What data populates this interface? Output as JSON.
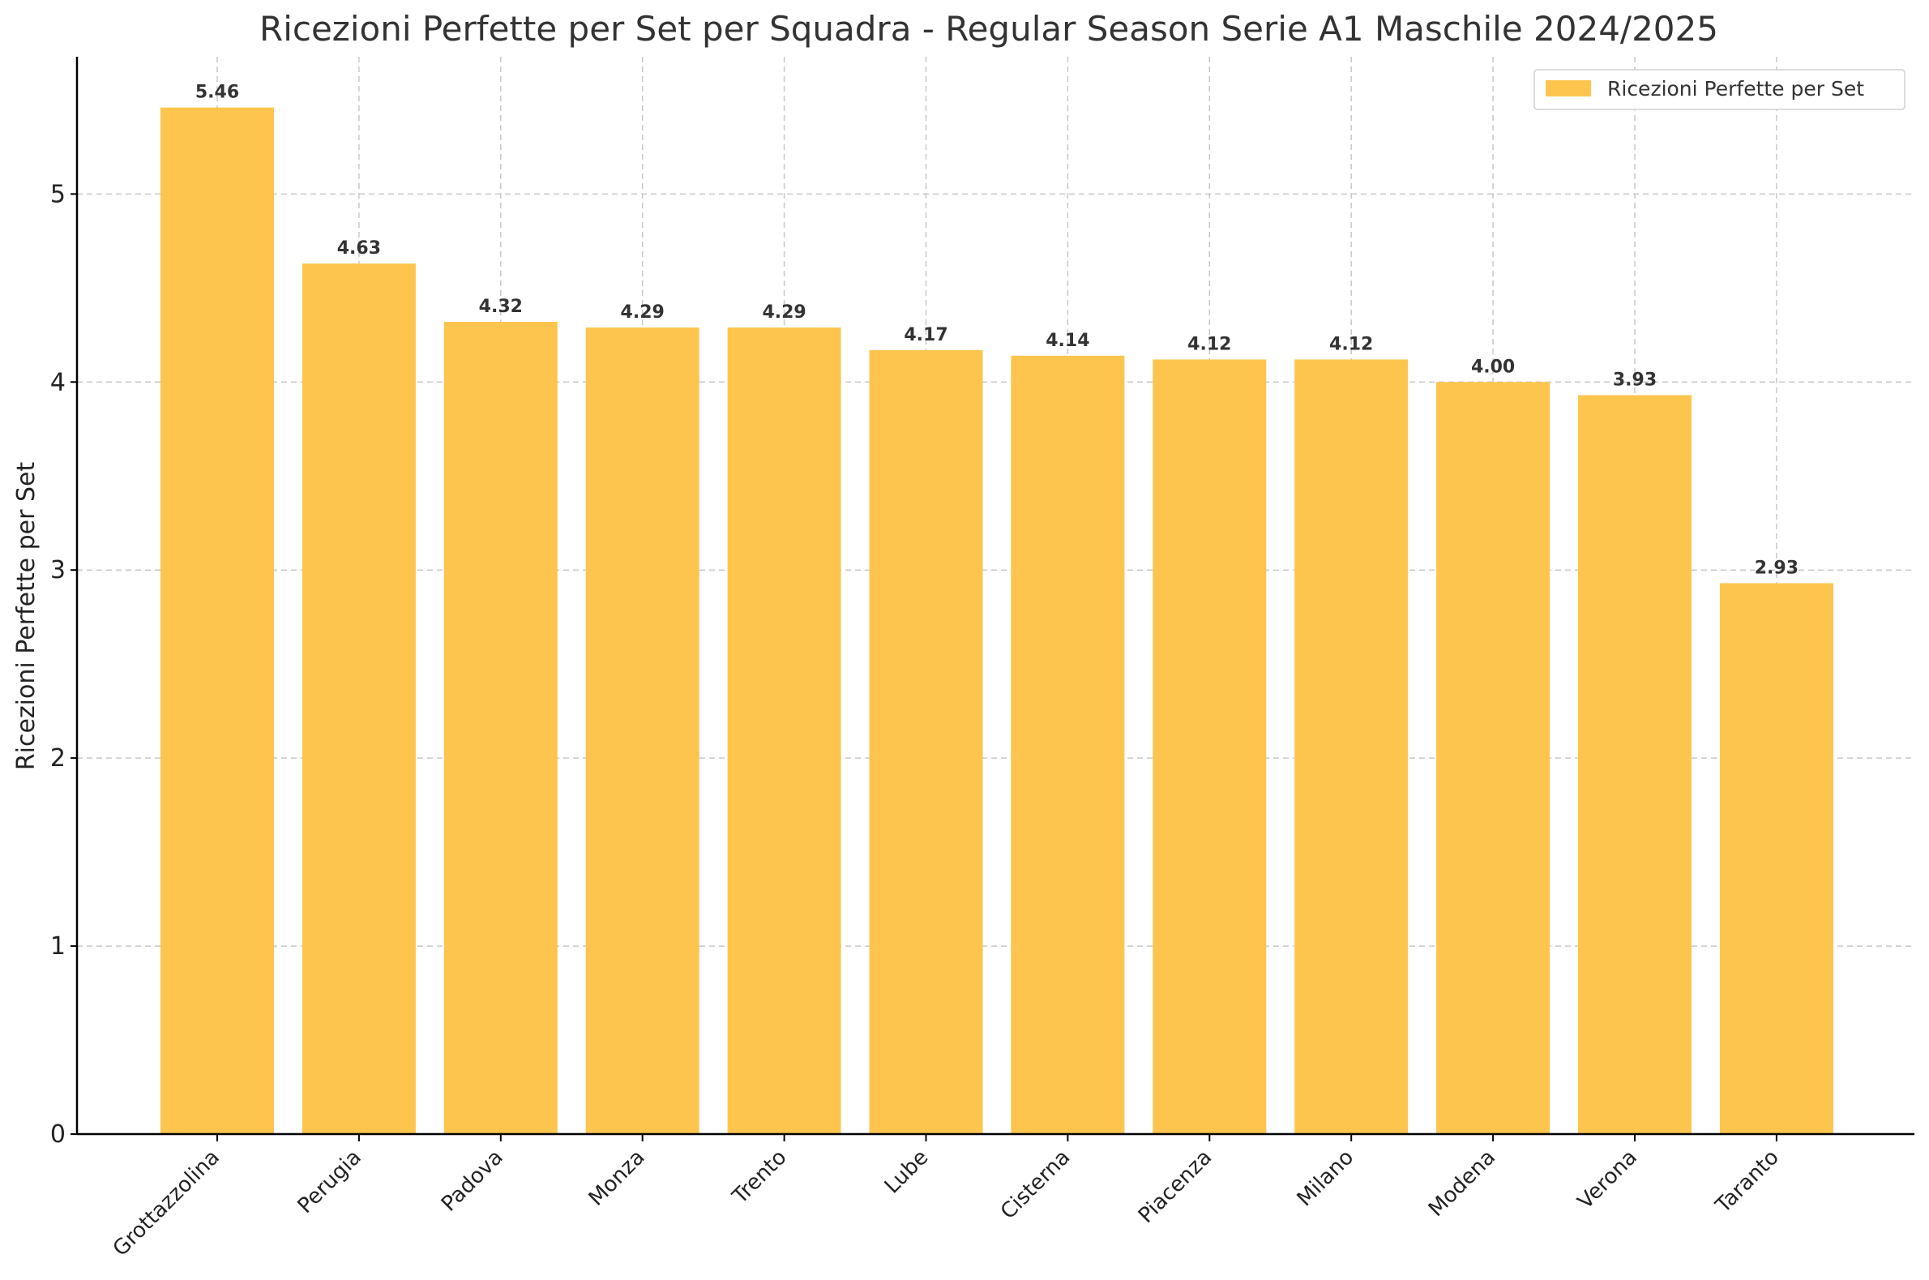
{
  "chart_data": {
    "type": "bar",
    "title": "Ricezioni Perfette per Set per Squadra - Regular Season Serie A1 Maschile 2024/2025",
    "xlabel": "",
    "ylabel": "Ricezioni Perfette per Set",
    "ylim": [
      0,
      5.73
    ],
    "yticks": [
      0,
      1,
      2,
      3,
      4,
      5
    ],
    "grid": true,
    "legend_position": "top-right",
    "bar_color": "#fdc54e",
    "categories": [
      "Grottazzolina",
      "Perugia",
      "Padova",
      "Monza",
      "Trento",
      "Lube",
      "Cisterna",
      "Piacenza",
      "Milano",
      "Modena",
      "Verona",
      "Taranto"
    ],
    "series": [
      {
        "name": "Ricezioni Perfette per Set",
        "values": [
          5.46,
          4.63,
          4.32,
          4.29,
          4.29,
          4.17,
          4.14,
          4.12,
          4.12,
          4.0,
          3.93,
          2.93
        ],
        "labels": [
          "5.46",
          "4.63",
          "4.32",
          "4.29",
          "4.29",
          "4.17",
          "4.14",
          "4.12",
          "4.12",
          "4.00",
          "3.93",
          "2.93"
        ]
      }
    ]
  }
}
